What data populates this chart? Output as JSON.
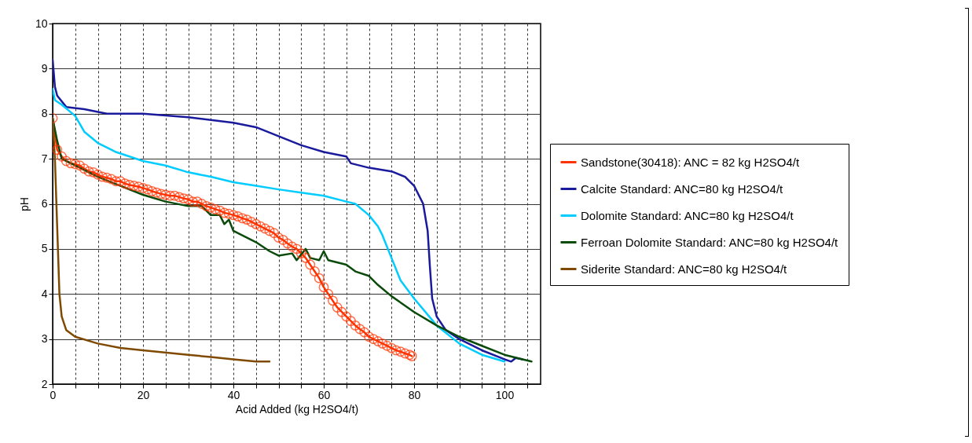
{
  "chart_data": {
    "type": "line",
    "xlabel": "Acid Added (kg H2SO4/t)",
    "ylabel": "pH",
    "xlim": [
      0,
      108
    ],
    "ylim": [
      2,
      10
    ],
    "xticks": [
      0,
      {
        "value": 5,
        "label": null
      },
      {
        "value": 10,
        "label": null
      },
      {
        "value": 15,
        "label": null
      },
      20,
      {
        "value": 25,
        "label": null
      },
      {
        "value": 30,
        "label": null
      },
      {
        "value": 35,
        "label": null
      },
      40,
      {
        "value": 45,
        "label": null
      },
      {
        "value": 50,
        "label": null
      },
      {
        "value": 55,
        "label": null
      },
      60,
      {
        "value": 65,
        "label": null
      },
      {
        "value": 70,
        "label": null
      },
      {
        "value": 75,
        "label": null
      },
      80,
      {
        "value": 85,
        "label": null
      },
      {
        "value": 90,
        "label": null
      },
      {
        "value": 95,
        "label": null
      },
      100,
      {
        "value": 105,
        "label": null
      }
    ],
    "yticks": [
      2,
      3,
      4,
      5,
      6,
      7,
      8,
      9,
      10
    ],
    "grid": true,
    "legend": "right",
    "line_style": "solid",
    "series": [
      {
        "name": "Sandstone(30418): ANC = 82 kg H2SO4/t",
        "color": "#ff3300",
        "marker": "circle",
        "x": [
          0,
          1,
          2,
          3,
          4,
          5,
          6,
          7,
          8,
          9,
          10,
          11,
          12,
          13,
          14,
          15,
          16,
          17,
          18,
          19,
          20,
          21,
          22,
          23,
          24,
          25,
          26,
          27,
          28,
          29,
          30,
          31,
          32,
          33,
          34,
          35,
          36,
          37,
          38,
          39,
          40,
          41,
          42,
          43,
          44,
          45,
          46,
          47,
          48,
          49,
          50,
          51,
          52,
          53,
          54,
          55,
          56,
          57,
          58,
          59,
          60,
          61,
          62,
          63,
          64,
          65,
          66,
          67,
          68,
          69,
          70,
          71,
          72,
          73,
          74,
          75,
          76,
          77,
          78,
          79,
          79.5
        ],
        "values": [
          7.9,
          7.2,
          7.05,
          6.95,
          6.9,
          6.88,
          6.85,
          6.78,
          6.72,
          6.7,
          6.65,
          6.6,
          6.58,
          6.55,
          6.5,
          6.5,
          6.45,
          6.42,
          6.4,
          6.38,
          6.35,
          6.32,
          6.28,
          6.25,
          6.22,
          6.2,
          6.18,
          6.18,
          6.15,
          6.12,
          6.1,
          6.05,
          6.05,
          6.0,
          5.95,
          5.92,
          5.88,
          5.85,
          5.8,
          5.78,
          5.75,
          5.72,
          5.68,
          5.65,
          5.6,
          5.55,
          5.5,
          5.45,
          5.4,
          5.35,
          5.25,
          5.2,
          5.12,
          5.05,
          5.0,
          4.9,
          4.8,
          4.65,
          4.5,
          4.35,
          4.15,
          4.0,
          3.85,
          3.7,
          3.6,
          3.5,
          3.4,
          3.3,
          3.22,
          3.15,
          3.05,
          3.0,
          2.95,
          2.9,
          2.85,
          2.8,
          2.75,
          2.72,
          2.68,
          2.65,
          2.62
        ]
      },
      {
        "name": "Calcite Standard: ANC=80 kg H2SO4/t",
        "color": "#1a1a9c",
        "marker": "none",
        "x": [
          0,
          0.5,
          1,
          3,
          7,
          12,
          20,
          30,
          40,
          45,
          50,
          55,
          60,
          65,
          66,
          70,
          75,
          78,
          80,
          82,
          83,
          83.5,
          84,
          85,
          87,
          90,
          95,
          100,
          101.5,
          102.5,
          104
        ],
        "values": [
          9.2,
          8.6,
          8.4,
          8.15,
          8.1,
          8.0,
          8.0,
          7.92,
          7.8,
          7.7,
          7.5,
          7.3,
          7.15,
          7.05,
          6.9,
          6.8,
          6.72,
          6.6,
          6.4,
          6.0,
          5.4,
          4.6,
          3.9,
          3.5,
          3.2,
          3.0,
          2.75,
          2.55,
          2.5,
          2.58,
          2.55
        ]
      },
      {
        "name": "Dolomite Standard: ANC=80 kg H2SO4/t",
        "color": "#00ccff",
        "marker": "none",
        "x": [
          0,
          0.5,
          2,
          5,
          7,
          10,
          13,
          14,
          20,
          25,
          30,
          35,
          40,
          45,
          50,
          55,
          60,
          65,
          67,
          70,
          72,
          73,
          75,
          77,
          80,
          85,
          90,
          95,
          100
        ],
        "values": [
          8.55,
          8.3,
          8.2,
          7.95,
          7.6,
          7.35,
          7.2,
          7.15,
          6.95,
          6.85,
          6.7,
          6.6,
          6.48,
          6.4,
          6.32,
          6.25,
          6.18,
          6.05,
          6.0,
          5.75,
          5.5,
          5.3,
          4.8,
          4.3,
          3.9,
          3.3,
          2.9,
          2.65,
          2.5
        ]
      },
      {
        "name": "Ferroan Dolomite Standard: ANC=80 kg H2SO4/t",
        "color": "#0a4a0a",
        "marker": "none",
        "x": [
          0,
          1,
          2,
          5,
          10,
          15,
          20,
          25,
          30,
          33,
          35,
          37,
          38,
          39,
          40,
          45,
          48,
          50,
          53,
          54,
          56,
          57,
          59,
          60,
          61,
          65,
          67,
          70,
          72,
          75,
          80,
          85,
          90,
          95,
          100,
          104,
          106
        ],
        "values": [
          7.9,
          7.4,
          7.0,
          6.85,
          6.6,
          6.4,
          6.2,
          6.05,
          5.95,
          5.95,
          5.75,
          5.75,
          5.55,
          5.65,
          5.4,
          5.15,
          4.95,
          4.85,
          4.9,
          4.75,
          5.0,
          4.8,
          4.75,
          4.95,
          4.75,
          4.65,
          4.5,
          4.4,
          4.2,
          3.95,
          3.6,
          3.3,
          3.05,
          2.85,
          2.65,
          2.55,
          2.5
        ]
      },
      {
        "name": "Siderite Standard: ANC=80 kg H2SO4/t",
        "color": "#7f4a00",
        "marker": "none",
        "x": [
          0,
          0.5,
          1,
          1.5,
          2,
          3,
          5,
          10,
          15,
          20,
          30,
          35,
          40,
          45,
          48
        ],
        "values": [
          7.9,
          7.0,
          5.5,
          4.0,
          3.5,
          3.2,
          3.05,
          2.9,
          2.8,
          2.75,
          2.65,
          2.6,
          2.55,
          2.5,
          2.5
        ]
      }
    ]
  }
}
